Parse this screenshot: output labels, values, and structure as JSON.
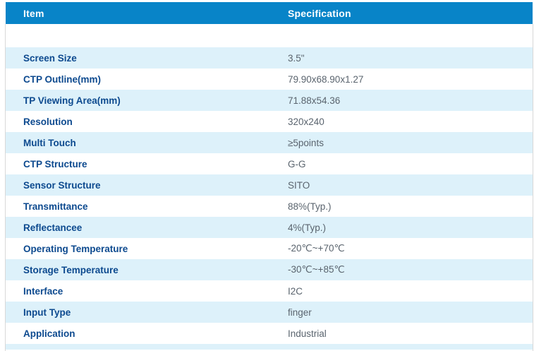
{
  "table": {
    "headers": {
      "item": "Item",
      "spec": "Specification"
    },
    "rows": [
      {
        "item": "Screen Size",
        "spec": "3.5\""
      },
      {
        "item": "CTP Outline(mm)",
        "spec": "79.90x68.90x1.27"
      },
      {
        "item": "TP Viewing Area(mm)",
        "spec": "71.88x54.36"
      },
      {
        "item": "Resolution",
        "spec": "320x240"
      },
      {
        "item": "Multi Touch",
        "spec": "≥5points"
      },
      {
        "item": "CTP Structure",
        "spec": "G-G"
      },
      {
        "item": "Sensor Structure",
        "spec": "SITO"
      },
      {
        "item": "Transmittance",
        "spec": "88%(Typ.)"
      },
      {
        "item": "Reflectancee",
        "spec": "4%(Typ.)"
      },
      {
        "item": "Operating Temperature",
        "spec": "-20℃~+70℃"
      },
      {
        "item": "Storage Temperature",
        "spec": "-30℃~+85℃"
      },
      {
        "item": "Interface",
        "spec": "I2C"
      },
      {
        "item": "Input Type",
        "spec": "finger"
      },
      {
        "item": "Application",
        "spec": "Industrial"
      }
    ]
  },
  "colors": {
    "header_bg": "#0884c8",
    "header_text": "#ffffff",
    "row_alt_bg": "#ddf1fa",
    "item_text": "#0d4a8f",
    "spec_text": "#5a646e",
    "page_border": "#d8d8d8"
  }
}
